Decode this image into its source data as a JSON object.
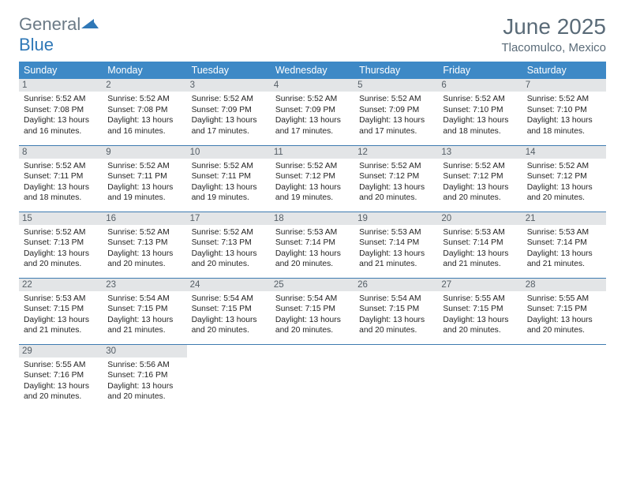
{
  "logo": {
    "general": "General",
    "blue": "Blue"
  },
  "title": "June 2025",
  "location": "Tlacomulco, Mexico",
  "colors": {
    "header_bg": "#3e89c6",
    "header_text": "#ffffff",
    "daynum_bg": "#e3e5e7",
    "daynum_text": "#555e66",
    "row_border": "#3e7bb0",
    "title_color": "#5a6b78",
    "logo_gray": "#6b7a86",
    "logo_blue": "#2f78b7"
  },
  "day_headers": [
    "Sunday",
    "Monday",
    "Tuesday",
    "Wednesday",
    "Thursday",
    "Friday",
    "Saturday"
  ],
  "weeks": [
    [
      {
        "n": "1",
        "sr": "5:52 AM",
        "ss": "7:08 PM",
        "dl": "13 hours and 16 minutes."
      },
      {
        "n": "2",
        "sr": "5:52 AM",
        "ss": "7:08 PM",
        "dl": "13 hours and 16 minutes."
      },
      {
        "n": "3",
        "sr": "5:52 AM",
        "ss": "7:09 PM",
        "dl": "13 hours and 17 minutes."
      },
      {
        "n": "4",
        "sr": "5:52 AM",
        "ss": "7:09 PM",
        "dl": "13 hours and 17 minutes."
      },
      {
        "n": "5",
        "sr": "5:52 AM",
        "ss": "7:09 PM",
        "dl": "13 hours and 17 minutes."
      },
      {
        "n": "6",
        "sr": "5:52 AM",
        "ss": "7:10 PM",
        "dl": "13 hours and 18 minutes."
      },
      {
        "n": "7",
        "sr": "5:52 AM",
        "ss": "7:10 PM",
        "dl": "13 hours and 18 minutes."
      }
    ],
    [
      {
        "n": "8",
        "sr": "5:52 AM",
        "ss": "7:11 PM",
        "dl": "13 hours and 18 minutes."
      },
      {
        "n": "9",
        "sr": "5:52 AM",
        "ss": "7:11 PM",
        "dl": "13 hours and 19 minutes."
      },
      {
        "n": "10",
        "sr": "5:52 AM",
        "ss": "7:11 PM",
        "dl": "13 hours and 19 minutes."
      },
      {
        "n": "11",
        "sr": "5:52 AM",
        "ss": "7:12 PM",
        "dl": "13 hours and 19 minutes."
      },
      {
        "n": "12",
        "sr": "5:52 AM",
        "ss": "7:12 PM",
        "dl": "13 hours and 20 minutes."
      },
      {
        "n": "13",
        "sr": "5:52 AM",
        "ss": "7:12 PM",
        "dl": "13 hours and 20 minutes."
      },
      {
        "n": "14",
        "sr": "5:52 AM",
        "ss": "7:12 PM",
        "dl": "13 hours and 20 minutes."
      }
    ],
    [
      {
        "n": "15",
        "sr": "5:52 AM",
        "ss": "7:13 PM",
        "dl": "13 hours and 20 minutes."
      },
      {
        "n": "16",
        "sr": "5:52 AM",
        "ss": "7:13 PM",
        "dl": "13 hours and 20 minutes."
      },
      {
        "n": "17",
        "sr": "5:52 AM",
        "ss": "7:13 PM",
        "dl": "13 hours and 20 minutes."
      },
      {
        "n": "18",
        "sr": "5:53 AM",
        "ss": "7:14 PM",
        "dl": "13 hours and 20 minutes."
      },
      {
        "n": "19",
        "sr": "5:53 AM",
        "ss": "7:14 PM",
        "dl": "13 hours and 21 minutes."
      },
      {
        "n": "20",
        "sr": "5:53 AM",
        "ss": "7:14 PM",
        "dl": "13 hours and 21 minutes."
      },
      {
        "n": "21",
        "sr": "5:53 AM",
        "ss": "7:14 PM",
        "dl": "13 hours and 21 minutes."
      }
    ],
    [
      {
        "n": "22",
        "sr": "5:53 AM",
        "ss": "7:15 PM",
        "dl": "13 hours and 21 minutes."
      },
      {
        "n": "23",
        "sr": "5:54 AM",
        "ss": "7:15 PM",
        "dl": "13 hours and 21 minutes."
      },
      {
        "n": "24",
        "sr": "5:54 AM",
        "ss": "7:15 PM",
        "dl": "13 hours and 20 minutes."
      },
      {
        "n": "25",
        "sr": "5:54 AM",
        "ss": "7:15 PM",
        "dl": "13 hours and 20 minutes."
      },
      {
        "n": "26",
        "sr": "5:54 AM",
        "ss": "7:15 PM",
        "dl": "13 hours and 20 minutes."
      },
      {
        "n": "27",
        "sr": "5:55 AM",
        "ss": "7:15 PM",
        "dl": "13 hours and 20 minutes."
      },
      {
        "n": "28",
        "sr": "5:55 AM",
        "ss": "7:15 PM",
        "dl": "13 hours and 20 minutes."
      }
    ],
    [
      {
        "n": "29",
        "sr": "5:55 AM",
        "ss": "7:16 PM",
        "dl": "13 hours and 20 minutes."
      },
      {
        "n": "30",
        "sr": "5:56 AM",
        "ss": "7:16 PM",
        "dl": "13 hours and 20 minutes."
      },
      null,
      null,
      null,
      null,
      null
    ]
  ],
  "labels": {
    "sunrise": "Sunrise: ",
    "sunset": "Sunset: ",
    "daylight": "Daylight: "
  }
}
